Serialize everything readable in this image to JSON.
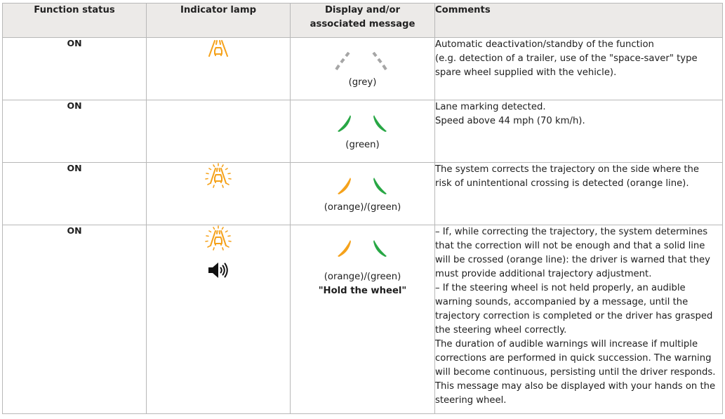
{
  "headers": {
    "function_status": "Function status",
    "indicator_lamp": "Indicator lamp",
    "display_message": "Display and/or associated message",
    "comments": "Comments"
  },
  "colors": {
    "orange": "#f5a21b",
    "green": "#28a745",
    "grey": "#a6a6a6",
    "header_bg": "#eceae8"
  },
  "rows": [
    {
      "status": "ON",
      "lamp_icon": "lane-assist-warning-icon",
      "lanes": "grey-grey",
      "display_caption": "(grey)",
      "comments": [
        "Automatic deactivation/standby of the function",
        "(e.g. detection of a trailer, use of the \"space-saver\" type",
        "spare wheel supplied with the vehicle)."
      ]
    },
    {
      "status": "ON",
      "lanes": "green-green",
      "display_caption": "(green)",
      "comments": [
        "Lane marking detected.",
        "Speed above 44 mph (70 km/h)."
      ]
    },
    {
      "status": "ON",
      "lamp_icon": "lane-assist-flashing-icon",
      "lanes": "orange-green",
      "display_caption": "(orange)/(green)",
      "comments": [
        "The system corrects the trajectory on the side where the",
        "risk of unintentional crossing is detected (orange line)."
      ]
    },
    {
      "status": "ON",
      "lamp_icon": "lane-assist-flashing-icon",
      "sound_icon": "speaker-icon",
      "lanes": "orange-green",
      "display_caption": "(orange)/(green)",
      "display_message": "\"Hold the wheel\"",
      "comments": [
        "–  If, while correcting the trajectory, the system determines",
        "that the correction will not be enough and that a solid line",
        "will be crossed (orange line): the driver is warned that they",
        "must provide additional trajectory adjustment.",
        "–  If the steering wheel is not held properly, an audible",
        "warning sounds, accompanied by a message, until the",
        "trajectory correction is completed or the driver has grasped",
        "the steering wheel correctly.",
        "The duration of audible warnings will increase if multiple",
        "corrections are performed in quick succession. The warning",
        "will become continuous, persisting until the driver responds.",
        "This message may also be displayed with your hands on the",
        "steering wheel."
      ]
    }
  ]
}
